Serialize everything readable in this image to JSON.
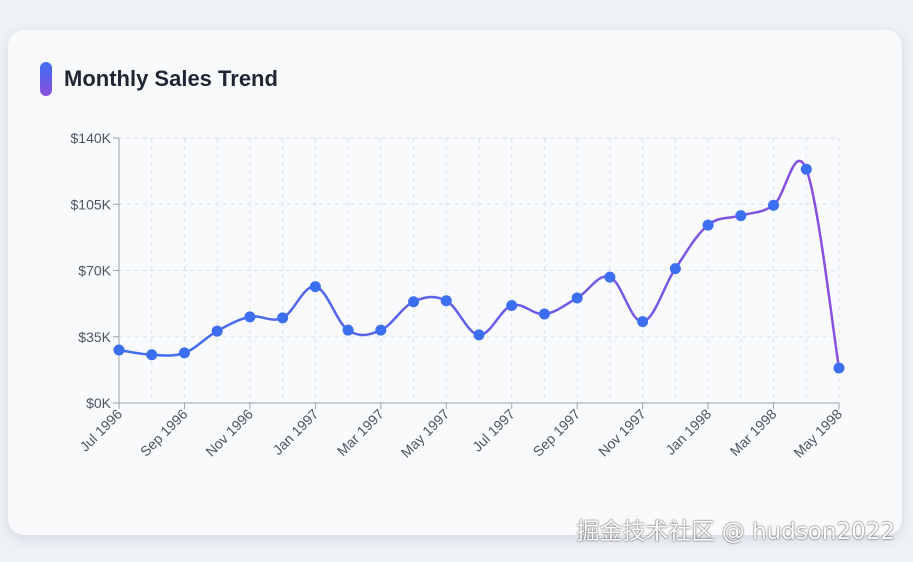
{
  "card": {
    "title": "Monthly Sales Trend"
  },
  "watermark": "掘金技术社区 @ hudson2022",
  "colors": {
    "line_start": "#3b6ff0",
    "line_end": "#8b4fe0",
    "point": "#3b6ff0",
    "grid": "#dbe3ec",
    "axis": "#9aa3ad"
  },
  "chart_data": {
    "type": "line",
    "title": "Monthly Sales Trend",
    "xlabel": "",
    "ylabel": "",
    "ylim": [
      0,
      140000
    ],
    "yticks": [
      0,
      35000,
      70000,
      105000,
      140000
    ],
    "ytick_labels": [
      "$0K",
      "$35K",
      "$70K",
      "$105K",
      "$140K"
    ],
    "xtick_labels": [
      "Jul 1996",
      "Sep 1996",
      "Nov 1996",
      "Jan 1997",
      "Mar 1997",
      "May 1997",
      "Jul 1997",
      "Sep 1997",
      "Nov 1997",
      "Jan 1998",
      "Mar 1998",
      "May 1998"
    ],
    "grid": true,
    "categories": [
      "Jul 1996",
      "Aug 1996",
      "Sep 1996",
      "Oct 1996",
      "Nov 1996",
      "Dec 1996",
      "Jan 1997",
      "Feb 1997",
      "Mar 1997",
      "Apr 1997",
      "May 1997",
      "Jun 1997",
      "Jul 1997",
      "Aug 1997",
      "Sep 1997",
      "Oct 1997",
      "Nov 1997",
      "Dec 1997",
      "Jan 1998",
      "Feb 1998",
      "Mar 1998",
      "Apr 1998",
      "May 1998"
    ],
    "values": [
      28000,
      25500,
      26500,
      38000,
      45500,
      45000,
      61500,
      38500,
      38500,
      53500,
      54000,
      36000,
      51500,
      47000,
      55500,
      66500,
      43000,
      71000,
      94000,
      99000,
      104500,
      123500,
      18500
    ]
  }
}
